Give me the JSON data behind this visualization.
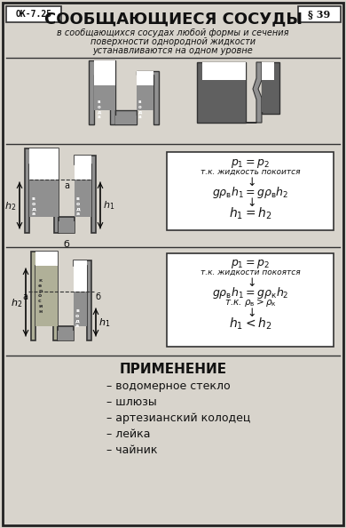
{
  "title": "СООБЩАЮЩИЕСЯ СОСУДЫ",
  "badge_left": "ОК-7.25",
  "badge_right": "§ 39",
  "subtitle_lines": [
    "в сообщающихся сосудах любой формы и сечения",
    "поверхности однородной жидкости",
    "устанавливаются на одном уровне"
  ],
  "application_title": "ПРИМЕНЕНИЕ",
  "application_items": [
    "– водомерное стекло",
    "– шлюзы",
    "– артезианский колодец",
    "– лейка",
    "– чайник"
  ],
  "bg_color": "#d8d4cc",
  "liquid_gray": "#909090",
  "liquid_dark": "#606060",
  "liquid_kerosene": "#b0b098",
  "vessel_dark": "#555555",
  "vessel_mid": "#888888"
}
